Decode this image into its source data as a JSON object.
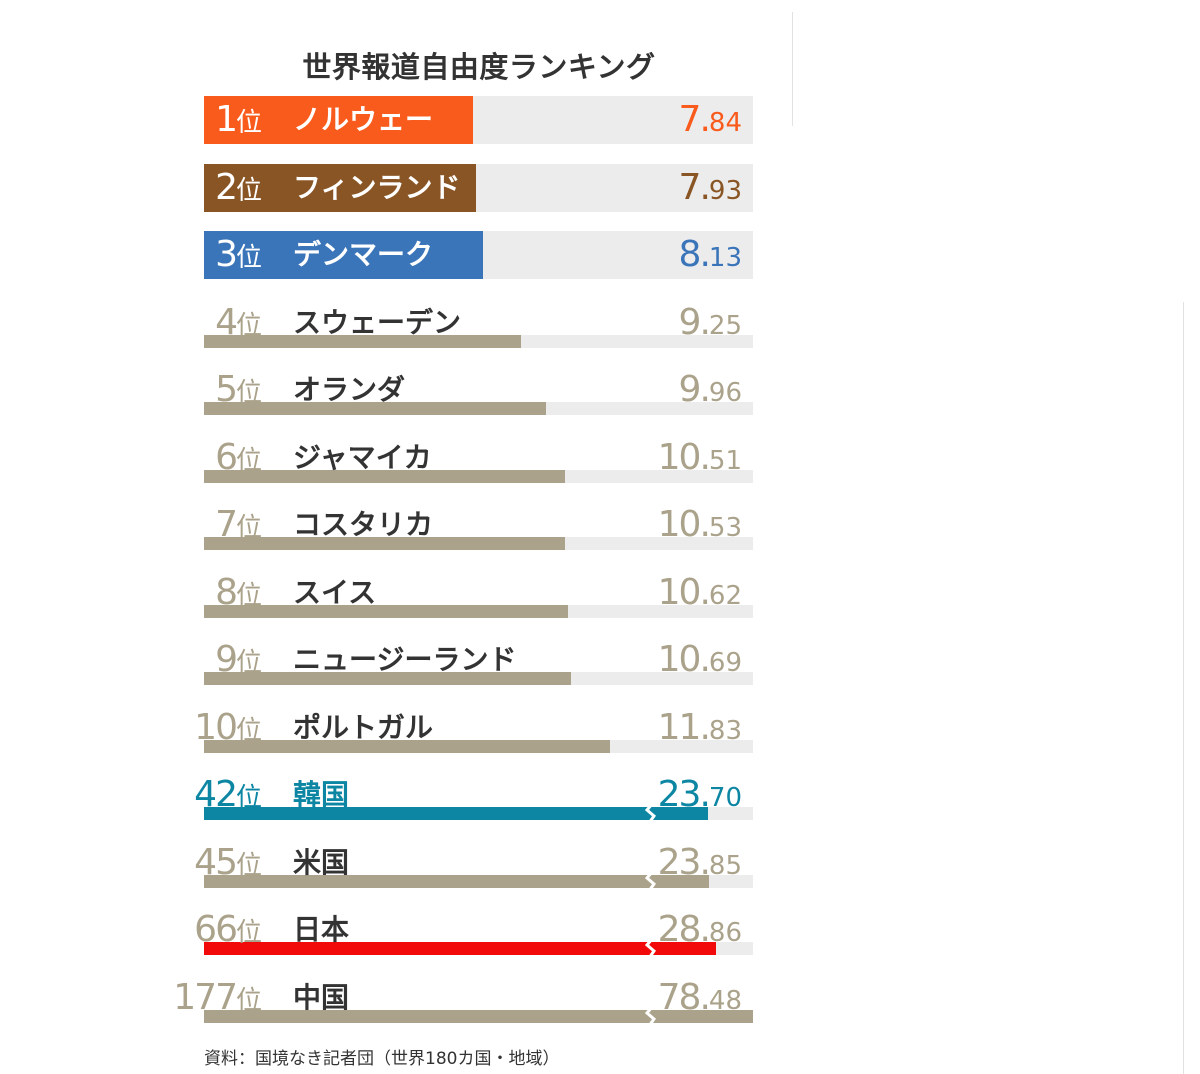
{
  "chart_data": {
    "type": "bar",
    "orientation": "horizontal",
    "title": "世界報道自由度ランキング",
    "xlim": [
      0,
      16
    ],
    "break_after": 11.83,
    "rank_suffix": "位",
    "rows": [
      {
        "rank": "1",
        "country": "ノルウェー",
        "value": 7.84,
        "color": "#f95b1c",
        "style": "highlight"
      },
      {
        "rank": "2",
        "country": "フィンランド",
        "value": 7.93,
        "color": "#8a5524",
        "style": "highlight"
      },
      {
        "rank": "3",
        "country": "デンマーク",
        "value": 8.13,
        "color": "#3a74b9",
        "style": "highlight"
      },
      {
        "rank": "4",
        "country": "スウェーデン",
        "value": 9.25,
        "color": "#aaa28a",
        "style": "bar"
      },
      {
        "rank": "5",
        "country": "オランダ",
        "value": 9.96,
        "color": "#aaa28a",
        "style": "bar"
      },
      {
        "rank": "6",
        "country": "ジャマイカ",
        "value": 10.51,
        "color": "#aaa28a",
        "style": "bar"
      },
      {
        "rank": "7",
        "country": "コスタリカ",
        "value": 10.53,
        "color": "#aaa28a",
        "style": "bar"
      },
      {
        "rank": "8",
        "country": "スイス",
        "value": 10.62,
        "color": "#aaa28a",
        "style": "bar"
      },
      {
        "rank": "9",
        "country": "ニュージーランド",
        "value": 10.69,
        "color": "#aaa28a",
        "style": "bar"
      },
      {
        "rank": "10",
        "country": "ポルトガル",
        "value": 11.83,
        "color": "#aaa28a",
        "style": "bar"
      },
      {
        "rank": "42",
        "country": "韓国",
        "value": 23.7,
        "color": "#0d86a3",
        "style": "bar",
        "text_color": "#0d86a3"
      },
      {
        "rank": "45",
        "country": "米国",
        "value": 23.85,
        "color": "#aaa28a",
        "style": "bar"
      },
      {
        "rank": "66",
        "country": "日本",
        "value": 28.86,
        "color": "#f20a0a",
        "style": "bar"
      },
      {
        "rank": "177",
        "country": "中国",
        "value": 78.48,
        "color": "#aaa28a",
        "style": "bar"
      }
    ],
    "source": "資料：国境なき記者団（世界180カ国・地域）"
  },
  "colors": {
    "track": "#ececec",
    "muted_text": "#aaa28a",
    "label_text": "#333333"
  }
}
